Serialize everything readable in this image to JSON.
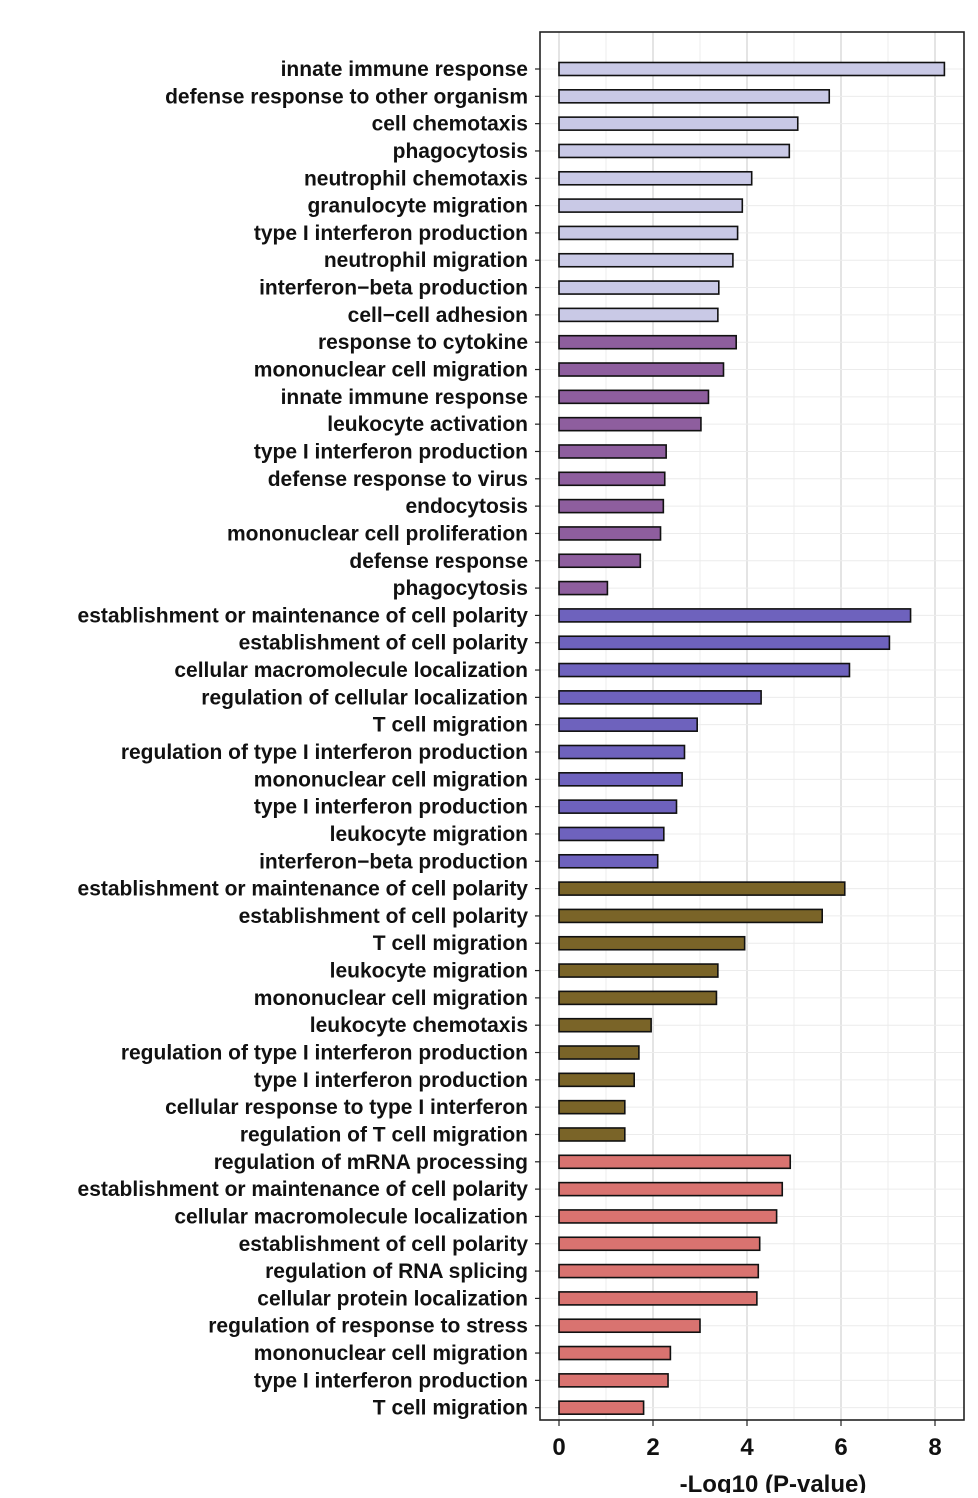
{
  "chart_data": {
    "type": "bar",
    "orientation": "horizontal",
    "xlabel": "-Log10 (P-value)",
    "ylabel": "",
    "xlim": [
      0,
      8.4
    ],
    "xticks": [
      0,
      2,
      4,
      6,
      8
    ],
    "grid": true,
    "series": [
      {
        "color": "#c9c9e6",
        "categories": [
          "innate immune response",
          "defense response to other organism",
          "cell chemotaxis",
          "phagocytosis",
          "neutrophil chemotaxis",
          "granulocyte migration",
          "type I interferon production",
          "neutrophil migration",
          "interferon−beta production",
          "cell−cell adhesion"
        ],
        "values": [
          8.2,
          5.75,
          5.08,
          4.9,
          4.1,
          3.9,
          3.8,
          3.7,
          3.4,
          3.38
        ]
      },
      {
        "color": "#8e5e9e",
        "categories": [
          "response to cytokine",
          "mononuclear cell migration",
          "innate immune response",
          "leukocyte activation",
          "type I interferon production",
          "defense response to virus",
          "endocytosis",
          "mononuclear cell proliferation",
          "defense response",
          "phagocytosis"
        ],
        "values": [
          3.77,
          3.5,
          3.18,
          3.02,
          2.28,
          2.25,
          2.22,
          2.16,
          1.73,
          1.03
        ]
      },
      {
        "color": "#6e62bd",
        "categories": [
          "establishment or maintenance of cell polarity",
          "establishment of cell polarity",
          "cellular macromolecule localization",
          "regulation of cellular localization",
          "T cell migration",
          "regulation of type I interferon production",
          "mononuclear cell migration",
          "type I interferon production",
          "leukocyte migration",
          "interferon−beta production"
        ],
        "values": [
          7.48,
          7.03,
          6.18,
          4.3,
          2.94,
          2.67,
          2.62,
          2.5,
          2.23,
          2.1
        ]
      },
      {
        "color": "#7a6428",
        "categories": [
          "establishment or maintenance of cell polarity",
          "establishment of cell polarity",
          "T cell migration",
          "leukocyte migration",
          "mononuclear cell migration",
          "leukocyte chemotaxis",
          "regulation of type I interferon production",
          "type I interferon production",
          "cellular response to type I interferon",
          "regulation of T cell migration"
        ],
        "values": [
          6.08,
          5.6,
          3.95,
          3.38,
          3.35,
          1.96,
          1.7,
          1.6,
          1.4,
          1.4
        ]
      },
      {
        "color": "#d97370",
        "categories": [
          "regulation of mRNA processing",
          "establishment or maintenance of cell polarity",
          "cellular macromolecule localization",
          "establishment of cell polarity",
          "regulation of RNA splicing",
          "cellular protein localization",
          "regulation of response to stress",
          "mononuclear cell migration",
          "type I interferon production",
          "T cell migration"
        ],
        "values": [
          4.92,
          4.75,
          4.63,
          4.27,
          4.24,
          4.21,
          3.0,
          2.37,
          2.32,
          1.8
        ]
      }
    ]
  }
}
